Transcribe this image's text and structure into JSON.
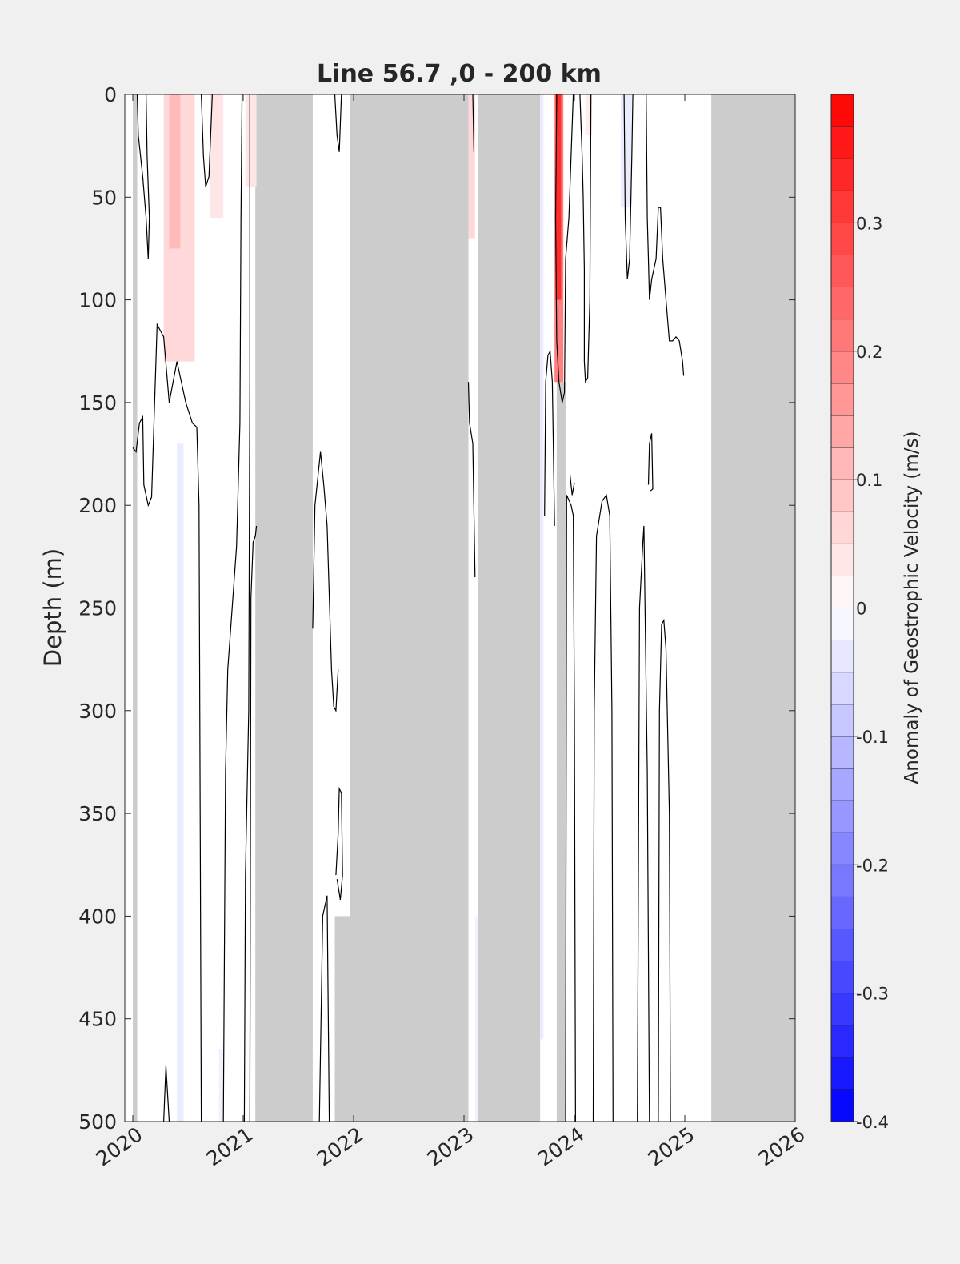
{
  "chart_data": {
    "type": "heatmap",
    "title": "Line 56.7 ,0 - 200 km",
    "ylabel": "Depth (m)",
    "xlabel": "",
    "xlim": [
      2020,
      2026
    ],
    "ylim": [
      0,
      500
    ],
    "y_reversed": true,
    "x_ticks": [
      "2020",
      "2021",
      "2022",
      "2023",
      "2024",
      "2025",
      "2026"
    ],
    "y_ticks": [
      "0",
      "50",
      "100",
      "150",
      "200",
      "250",
      "300",
      "350",
      "400",
      "450",
      "500"
    ],
    "colorbar": {
      "label": "Anomaly of Geostrophic Velocity (m/s)",
      "range": [
        -0.4,
        0.4
      ],
      "step": 0.025,
      "ticks": [
        "-0.4",
        "-0.3",
        "-0.2",
        "-0.1",
        "0",
        "0.1",
        "0.2",
        "0.3"
      ],
      "tick_values": [
        -0.4,
        -0.3,
        -0.2,
        -0.1,
        0,
        0.1,
        0.2,
        0.3
      ],
      "colors": {
        "negative": "#0000ff",
        "zero": "#ffffff",
        "positive": "#ff0000"
      }
    },
    "no_data_color": "#cccccc",
    "no_data_periods": [
      [
        2021.11,
        2021.63
      ],
      [
        2021.97,
        2023.04
      ],
      [
        2023.13,
        2023.69
      ],
      [
        2025.24,
        2026.0
      ]
    ],
    "no_data_partial": [
      {
        "x": [
          2023.84,
          2023.92
        ],
        "depth": [
          140,
          500
        ]
      },
      {
        "x": [
          2021.83,
          2021.97
        ],
        "depth": [
          400,
          500
        ]
      },
      {
        "x": [
          2020.0,
          2020.04
        ],
        "depth": [
          0,
          500
        ]
      }
    ],
    "anomaly_patches": [
      {
        "x": [
          2020.28,
          2020.56
        ],
        "depth": [
          0,
          130
        ],
        "value": 0.06
      },
      {
        "x": [
          2020.33,
          2020.43
        ],
        "depth": [
          0,
          75
        ],
        "value": 0.11
      },
      {
        "x": [
          2020.7,
          2020.82
        ],
        "depth": [
          0,
          60
        ],
        "value": 0.04
      },
      {
        "x": [
          2021.02,
          2021.12
        ],
        "depth": [
          0,
          45
        ],
        "value": 0.04
      },
      {
        "x": [
          2023.04,
          2023.1
        ],
        "depth": [
          0,
          70
        ],
        "value": 0.06
      },
      {
        "x": [
          2023.82,
          2023.9
        ],
        "depth": [
          0,
          140
        ],
        "value": 0.2
      },
      {
        "x": [
          2023.83,
          2023.88
        ],
        "depth": [
          0,
          100
        ],
        "value": 0.33
      },
      {
        "x": [
          2024.1,
          2024.16
        ],
        "depth": [
          0,
          20
        ],
        "value": 0.03
      },
      {
        "x": [
          2024.42,
          2024.52
        ],
        "depth": [
          0,
          55
        ],
        "value": -0.03
      },
      {
        "x": [
          2020.4,
          2020.46
        ],
        "depth": [
          170,
          500
        ],
        "value": -0.03
      },
      {
        "x": [
          2020.78,
          2020.82
        ],
        "depth": [
          465,
          500
        ],
        "value": -0.02
      },
      {
        "x": [
          2023.69,
          2023.72
        ],
        "depth": [
          0,
          460
        ],
        "value": -0.03
      },
      {
        "x": [
          2023.1,
          2023.13
        ],
        "depth": [
          400,
          500
        ],
        "value": -0.02
      }
    ],
    "contours": [
      [
        [
          2020.04,
          0
        ],
        [
          2020.05,
          20
        ],
        [
          2020.09,
          40
        ],
        [
          2020.12,
          60
        ],
        [
          2020.14,
          80
        ],
        [
          2020.15,
          60
        ],
        [
          2020.13,
          30
        ],
        [
          2020.12,
          0
        ]
      ],
      [
        [
          2020.0,
          172
        ],
        [
          2020.03,
          174
        ],
        [
          2020.06,
          160
        ],
        [
          2020.09,
          157
        ],
        [
          2020.1,
          190
        ],
        [
          2020.14,
          200
        ],
        [
          2020.17,
          196
        ],
        [
          2020.22,
          112
        ],
        [
          2020.28,
          118
        ],
        [
          2020.33,
          150
        ],
        [
          2020.4,
          130
        ],
        [
          2020.48,
          150
        ],
        [
          2020.54,
          160
        ],
        [
          2020.58,
          162
        ],
        [
          2020.6,
          200
        ],
        [
          2020.62,
          500
        ]
      ],
      [
        [
          2020.28,
          500
        ],
        [
          2020.3,
          473
        ],
        [
          2020.33,
          500
        ]
      ],
      [
        [
          2020.62,
          0
        ],
        [
          2020.64,
          30
        ],
        [
          2020.66,
          45
        ],
        [
          2020.69,
          40
        ],
        [
          2020.72,
          0
        ]
      ],
      [
        [
          2020.82,
          500
        ],
        [
          2020.84,
          330
        ],
        [
          2020.86,
          280
        ],
        [
          2020.9,
          250
        ],
        [
          2020.94,
          220
        ],
        [
          2020.97,
          160
        ],
        [
          2020.98,
          60
        ],
        [
          2020.99,
          0
        ]
      ],
      [
        [
          2021.06,
          0
        ],
        [
          2021.06,
          140
        ],
        [
          2021.05,
          300
        ],
        [
          2021.02,
          380
        ],
        [
          2021.01,
          500
        ]
      ],
      [
        [
          2021.06,
          500
        ],
        [
          2021.07,
          245
        ],
        [
          2021.09,
          218
        ],
        [
          2021.11,
          215
        ],
        [
          2021.12,
          210
        ]
      ],
      [
        [
          2021.63,
          260
        ],
        [
          2021.65,
          200
        ],
        [
          2021.7,
          174
        ],
        [
          2021.73,
          190
        ],
        [
          2021.76,
          210
        ],
        [
          2021.8,
          280
        ],
        [
          2021.82,
          298
        ],
        [
          2021.84,
          300
        ],
        [
          2021.86,
          280
        ]
      ],
      [
        [
          2021.69,
          500
        ],
        [
          2021.72,
          400
        ],
        [
          2021.76,
          390
        ],
        [
          2021.78,
          500
        ]
      ],
      [
        [
          2021.83,
          0
        ],
        [
          2021.85,
          20
        ],
        [
          2021.87,
          28
        ],
        [
          2021.89,
          0
        ]
      ],
      [
        [
          2021.84,
          380
        ],
        [
          2021.86,
          360
        ],
        [
          2021.87,
          338
        ],
        [
          2021.89,
          340
        ],
        [
          2021.9,
          380
        ],
        [
          2021.88,
          392
        ],
        [
          2021.85,
          382
        ]
      ],
      [
        [
          2023.04,
          140
        ],
        [
          2023.05,
          160
        ],
        [
          2023.08,
          170
        ],
        [
          2023.1,
          235
        ]
      ],
      [
        [
          2023.08,
          0
        ],
        [
          2023.09,
          28
        ]
      ],
      [
        [
          2023.73,
          205
        ],
        [
          2023.74,
          140
        ],
        [
          2023.76,
          127
        ],
        [
          2023.78,
          125
        ],
        [
          2023.8,
          140
        ],
        [
          2023.82,
          210
        ]
      ],
      [
        [
          2023.84,
          0
        ],
        [
          2023.83,
          60
        ],
        [
          2023.84,
          120
        ],
        [
          2023.86,
          140
        ],
        [
          2023.89,
          150
        ],
        [
          2023.91,
          145
        ],
        [
          2023.92,
          80
        ],
        [
          2023.95,
          60
        ],
        [
          2023.99,
          0
        ]
      ],
      [
        [
          2023.92,
          500
        ],
        [
          2023.93,
          195
        ],
        [
          2023.97,
          200
        ],
        [
          2023.99,
          205
        ],
        [
          2024.0,
          300
        ],
        [
          2024.01,
          500
        ]
      ],
      [
        [
          2023.96,
          185
        ],
        [
          2023.98,
          195
        ],
        [
          2024.0,
          189
        ]
      ],
      [
        [
          2024.05,
          0
        ],
        [
          2024.07,
          30
        ],
        [
          2024.08,
          50
        ],
        [
          2024.09,
          85
        ],
        [
          2024.09,
          130
        ],
        [
          2024.1,
          140
        ],
        [
          2024.12,
          138
        ],
        [
          2024.14,
          100
        ],
        [
          2024.15,
          0
        ]
      ],
      [
        [
          2024.17,
          500
        ],
        [
          2024.18,
          300
        ],
        [
          2024.2,
          215
        ],
        [
          2024.25,
          198
        ],
        [
          2024.29,
          195
        ],
        [
          2024.32,
          205
        ],
        [
          2024.34,
          300
        ],
        [
          2024.35,
          500
        ]
      ],
      [
        [
          2024.45,
          0
        ],
        [
          2024.46,
          60
        ],
        [
          2024.48,
          90
        ],
        [
          2024.5,
          80
        ],
        [
          2024.52,
          30
        ],
        [
          2024.53,
          0
        ]
      ],
      [
        [
          2024.57,
          500
        ],
        [
          2024.59,
          250
        ],
        [
          2024.62,
          218
        ],
        [
          2024.63,
          210
        ],
        [
          2024.64,
          250
        ],
        [
          2024.66,
          330
        ],
        [
          2024.68,
          500
        ]
      ],
      [
        [
          2024.65,
          0
        ],
        [
          2024.66,
          60
        ],
        [
          2024.67,
          80
        ],
        [
          2024.68,
          100
        ],
        [
          2024.7,
          90
        ],
        [
          2024.74,
          80
        ],
        [
          2024.76,
          55
        ],
        [
          2024.78,
          55
        ],
        [
          2024.8,
          80
        ],
        [
          2024.83,
          100
        ],
        [
          2024.86,
          120
        ],
        [
          2024.89,
          120
        ],
        [
          2024.92,
          118
        ],
        [
          2024.95,
          120
        ],
        [
          2024.98,
          130
        ],
        [
          2024.99,
          137
        ]
      ],
      [
        [
          2024.67,
          190
        ],
        [
          2024.68,
          170
        ],
        [
          2024.7,
          165
        ],
        [
          2024.71,
          192
        ],
        [
          2024.69,
          193
        ]
      ],
      [
        [
          2024.76,
          500
        ],
        [
          2024.77,
          300
        ],
        [
          2024.79,
          258
        ],
        [
          2024.81,
          256
        ],
        [
          2024.83,
          270
        ],
        [
          2024.86,
          350
        ],
        [
          2024.87,
          500
        ]
      ]
    ]
  }
}
